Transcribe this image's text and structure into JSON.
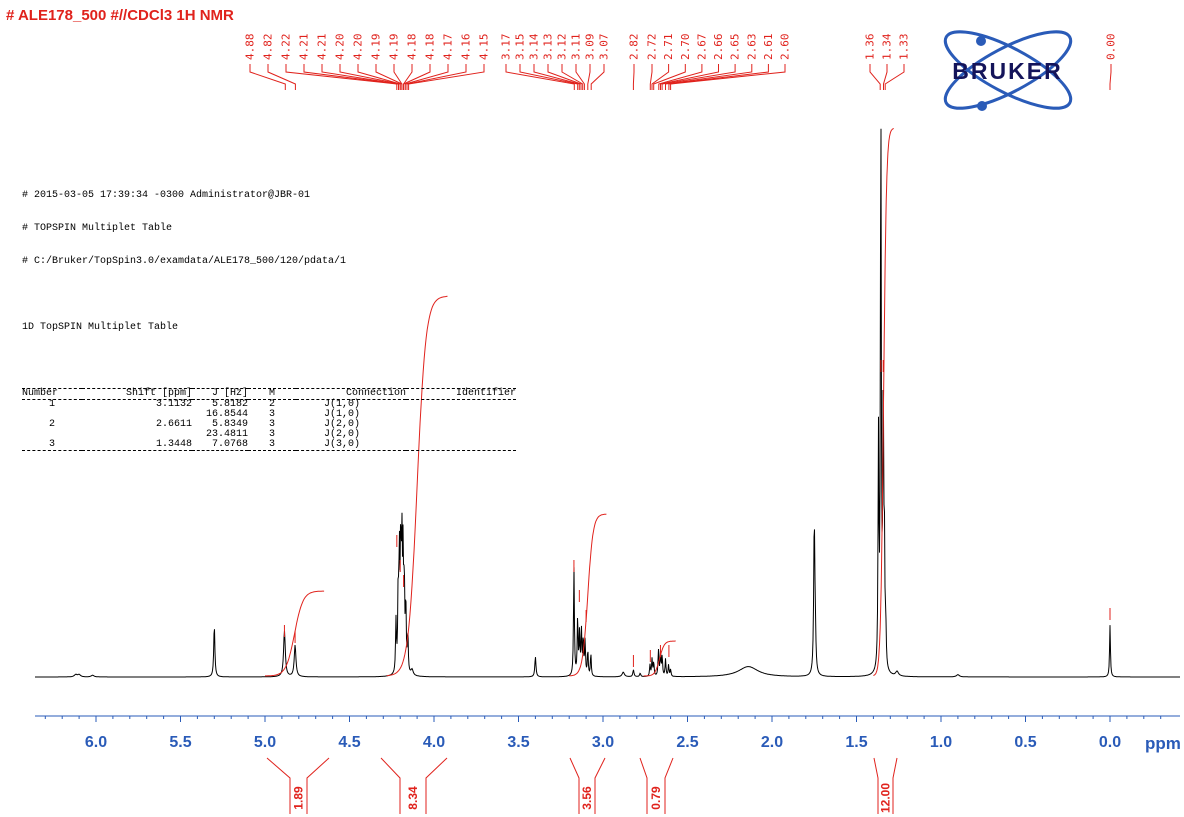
{
  "title": "# ALE178_500 #//CDCl3  1H NMR",
  "header_lines": [
    "# 2015-03-05 17:39:34 -0300 Administrator@JBR-01",
    "# TOPSPIN Multiplet Table",
    "# C:/Bruker/TopSpin3.0/examdata/ALE178_500/120/pdata/1"
  ],
  "table_title": "1D TopSPIN Multiplet Table",
  "table": {
    "columns": [
      "Number",
      "Shift [ppm]",
      "J [Hz]",
      "M",
      "Connection",
      "Identifier"
    ],
    "rows": [
      [
        "1",
        "3.1132",
        "5.8182",
        "2",
        "J(1,0)",
        ""
      ],
      [
        "",
        "",
        "16.8544",
        "3",
        "J(1,0)",
        ""
      ],
      [
        "2",
        "2.6611",
        "5.8349",
        "3",
        "J(2,0)",
        ""
      ],
      [
        "",
        "",
        "23.4811",
        "3",
        "J(2,0)",
        ""
      ],
      [
        "3",
        "1.3448",
        "7.0768",
        "3",
        "J(3,0)",
        ""
      ]
    ]
  },
  "logo": {
    "text": "BRUKER"
  },
  "colors": {
    "spectrum": "#000000",
    "integral": "#e0221c",
    "peak_labels": "#e0221c",
    "logo_blue": "#2a5bb8",
    "logo_text": "#14145a",
    "axis": "#2a5bb8"
  },
  "chart_data": {
    "type": "line",
    "xlabel": "ppm",
    "xlim": [
      6.4,
      -0.4
    ],
    "x_reversed": true,
    "tick_labels": [
      "6.0",
      "5.5",
      "5.0",
      "4.5",
      "4.0",
      "3.5",
      "3.0",
      "2.5",
      "2.0",
      "1.5",
      "1.0",
      "0.5",
      "0.0"
    ],
    "tick_values": [
      6.0,
      5.5,
      5.0,
      4.5,
      4.0,
      3.5,
      3.0,
      2.5,
      2.0,
      1.5,
      1.0,
      0.5,
      0.0
    ],
    "peak_labels": [
      {
        "text": "4.88",
        "ppm": 4.88
      },
      {
        "text": "4.82",
        "ppm": 4.82
      },
      {
        "text": "4.22",
        "ppm": 4.22
      },
      {
        "text": "4.21",
        "ppm": 4.21
      },
      {
        "text": "4.21",
        "ppm": 4.21
      },
      {
        "text": "4.20",
        "ppm": 4.2
      },
      {
        "text": "4.20",
        "ppm": 4.2
      },
      {
        "text": "4.19",
        "ppm": 4.19
      },
      {
        "text": "4.19",
        "ppm": 4.19
      },
      {
        "text": "4.18",
        "ppm": 4.18
      },
      {
        "text": "4.18",
        "ppm": 4.18
      },
      {
        "text": "4.17",
        "ppm": 4.17
      },
      {
        "text": "4.16",
        "ppm": 4.16
      },
      {
        "text": "4.15",
        "ppm": 4.15
      },
      {
        "text": "3.17",
        "ppm": 3.17
      },
      {
        "text": "3.15",
        "ppm": 3.15
      },
      {
        "text": "3.14",
        "ppm": 3.14
      },
      {
        "text": "3.13",
        "ppm": 3.13
      },
      {
        "text": "3.12",
        "ppm": 3.12
      },
      {
        "text": "3.11",
        "ppm": 3.11
      },
      {
        "text": "3.09",
        "ppm": 3.09
      },
      {
        "text": "3.07",
        "ppm": 3.07
      },
      {
        "text": "2.82",
        "ppm": 2.82
      },
      {
        "text": "2.72",
        "ppm": 2.72
      },
      {
        "text": "2.71",
        "ppm": 2.71
      },
      {
        "text": "2.70",
        "ppm": 2.7
      },
      {
        "text": "2.67",
        "ppm": 2.67
      },
      {
        "text": "2.66",
        "ppm": 2.66
      },
      {
        "text": "2.65",
        "ppm": 2.65
      },
      {
        "text": "2.63",
        "ppm": 2.63
      },
      {
        "text": "2.61",
        "ppm": 2.61
      },
      {
        "text": "2.60",
        "ppm": 2.6
      },
      {
        "text": "1.36",
        "ppm": 1.36
      },
      {
        "text": "1.34",
        "ppm": 1.34
      },
      {
        "text": "1.33",
        "ppm": 1.33
      },
      {
        "text": "0.00",
        "ppm": 0.0
      }
    ],
    "peaks": [
      {
        "ppm": 6.12,
        "height": 0.004,
        "width": 0.01
      },
      {
        "ppm": 6.1,
        "height": 0.004,
        "width": 0.01
      },
      {
        "ppm": 6.02,
        "height": 0.003,
        "width": 0.01
      },
      {
        "ppm": 5.3,
        "height": 0.09,
        "width": 0.004
      },
      {
        "ppm": 4.885,
        "height": 0.08,
        "width": 0.006
      },
      {
        "ppm": 4.822,
        "height": 0.055,
        "width": 0.006
      },
      {
        "ppm": 4.225,
        "height": 0.09,
        "width": 0.003
      },
      {
        "ppm": 4.212,
        "height": 0.14,
        "width": 0.003
      },
      {
        "ppm": 4.205,
        "height": 0.2,
        "width": 0.003
      },
      {
        "ppm": 4.197,
        "height": 0.22,
        "width": 0.003
      },
      {
        "ppm": 4.19,
        "height": 0.21,
        "width": 0.003
      },
      {
        "ppm": 4.183,
        "height": 0.19,
        "width": 0.003
      },
      {
        "ppm": 4.176,
        "height": 0.15,
        "width": 0.003
      },
      {
        "ppm": 4.167,
        "height": 0.12,
        "width": 0.003
      },
      {
        "ppm": 4.155,
        "height": 0.07,
        "width": 0.003
      },
      {
        "ppm": 4.13,
        "height": 0.01,
        "width": 0.008
      },
      {
        "ppm": 3.4,
        "height": 0.035,
        "width": 0.004
      },
      {
        "ppm": 3.172,
        "height": 0.19,
        "width": 0.003
      },
      {
        "ppm": 3.15,
        "height": 0.1,
        "width": 0.003
      },
      {
        "ppm": 3.139,
        "height": 0.07,
        "width": 0.003
      },
      {
        "ppm": 3.128,
        "height": 0.08,
        "width": 0.003
      },
      {
        "ppm": 3.117,
        "height": 0.065,
        "width": 0.003
      },
      {
        "ppm": 3.106,
        "height": 0.06,
        "width": 0.003
      },
      {
        "ppm": 3.09,
        "height": 0.045,
        "width": 0.003
      },
      {
        "ppm": 3.072,
        "height": 0.04,
        "width": 0.003
      },
      {
        "ppm": 2.88,
        "height": 0.008,
        "width": 0.008
      },
      {
        "ppm": 2.82,
        "height": 0.012,
        "width": 0.004
      },
      {
        "ppm": 2.78,
        "height": 0.006,
        "width": 0.004
      },
      {
        "ppm": 2.722,
        "height": 0.02,
        "width": 0.003
      },
      {
        "ppm": 2.71,
        "height": 0.03,
        "width": 0.003
      },
      {
        "ppm": 2.7,
        "height": 0.025,
        "width": 0.003
      },
      {
        "ppm": 2.672,
        "height": 0.045,
        "width": 0.003
      },
      {
        "ppm": 2.66,
        "height": 0.04,
        "width": 0.003
      },
      {
        "ppm": 2.65,
        "height": 0.035,
        "width": 0.003
      },
      {
        "ppm": 2.63,
        "height": 0.03,
        "width": 0.003
      },
      {
        "ppm": 2.612,
        "height": 0.02,
        "width": 0.003
      },
      {
        "ppm": 2.6,
        "height": 0.012,
        "width": 0.003
      },
      {
        "ppm": 2.14,
        "height": 0.018,
        "width": 0.07
      },
      {
        "ppm": 1.75,
        "height": 0.26,
        "width": 0.004
      },
      {
        "ppm": 1.744,
        "height": 0.06,
        "width": 0.004
      },
      {
        "ppm": 1.37,
        "height": 0.4,
        "width": 0.003
      },
      {
        "ppm": 1.356,
        "height": 1.0,
        "width": 0.003
      },
      {
        "ppm": 1.342,
        "height": 0.48,
        "width": 0.003
      },
      {
        "ppm": 1.335,
        "height": 0.2,
        "width": 0.003
      },
      {
        "ppm": 1.327,
        "height": 0.07,
        "width": 0.003
      },
      {
        "ppm": 1.26,
        "height": 0.008,
        "width": 0.01
      },
      {
        "ppm": 0.9,
        "height": 0.004,
        "width": 0.01
      },
      {
        "ppm": 0.0,
        "height": 0.09,
        "width": 0.003
      }
    ],
    "integrals": [
      {
        "label": "1.89",
        "from": 5.0,
        "to": 4.65,
        "value": 1.89
      },
      {
        "label": "8.34",
        "from": 4.3,
        "to": 3.92,
        "value": 8.34
      },
      {
        "label": "3.56",
        "from": 3.2,
        "to": 2.98,
        "value": 3.56
      },
      {
        "label": "0.79",
        "from": 2.8,
        "to": 2.57,
        "value": 0.79
      },
      {
        "label": "12.00",
        "from": 1.4,
        "to": 1.28,
        "value": 12.0
      }
    ]
  }
}
